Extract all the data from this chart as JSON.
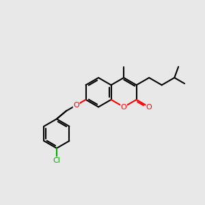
{
  "background_color": "#e8e8e8",
  "bond_color": "#000000",
  "heteroatom_color_O": "#ff0000",
  "heteroatom_color_Cl": "#00aa00",
  "line_width": 1.5,
  "figsize": [
    3.0,
    3.0
  ],
  "dpi": 100,
  "xlim": [
    0,
    10
  ],
  "ylim": [
    0,
    10
  ]
}
